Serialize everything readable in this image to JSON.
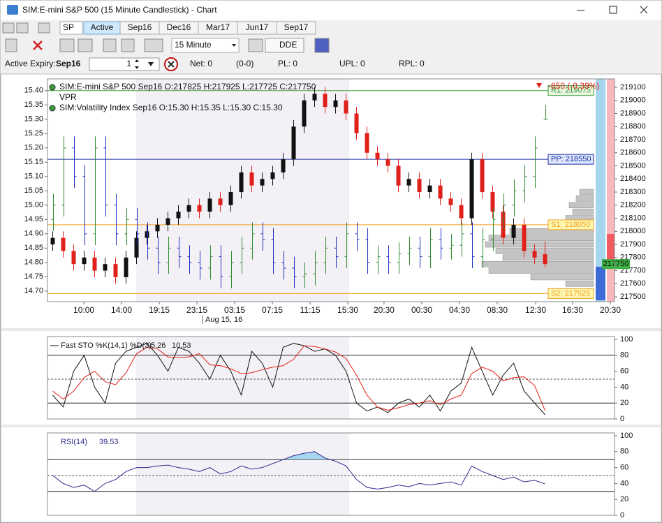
{
  "window": {
    "title": "SIM:E-mini S&P 500 (15 Minute Candlestick) - Chart"
  },
  "toolbar": {
    "symbol": "SP",
    "tabs": [
      "Active",
      "Sep16",
      "Dec16",
      "Mar17",
      "Jun17",
      "Sep17"
    ],
    "interval": "15 Minute",
    "dde": "DDE"
  },
  "status": {
    "expiry_label": "Active Expiry:",
    "expiry": "Sep16",
    "quantity": 1,
    "net": "Net: 0",
    "record": "(0-0)",
    "pl": "PL: 0",
    "upl": "UPL: 0",
    "rpl": "RPL: 0"
  },
  "chart_data": [
    {
      "type": "candlestick",
      "indicator": "VPR",
      "change_label": "-850 (-0.39%)",
      "x": [
        0.5,
        1.5,
        2.5,
        3.5,
        4.5,
        5.5,
        6.5,
        7.5,
        8.5,
        9.5,
        10.5,
        11.5,
        12.5,
        13.5,
        14.5,
        15.5,
        16.5,
        17.5,
        18.5,
        19.5,
        20.5,
        21.5,
        22.5,
        23.5,
        24.5,
        25.5,
        26.5,
        27.5,
        28.5,
        29.5,
        30.5,
        31.5,
        32.5,
        33.5,
        34.5,
        35.5,
        36.5,
        37.5,
        38.5,
        39.5,
        40.5,
        41.5,
        42.5,
        43.5,
        44.5,
        45.5,
        46.5,
        47.5
      ],
      "xlim": [
        0,
        54.13
      ],
      "xticks": [
        {
          "value": 3.47,
          "label": "10:00"
        },
        {
          "value": 7.07,
          "label": "14:00"
        },
        {
          "value": 10.67,
          "label": "19:15"
        },
        {
          "value": 14.27,
          "label": "23:15"
        },
        {
          "value": 17.87,
          "label": "03:15"
        },
        {
          "value": 21.47,
          "label": "07:15"
        },
        {
          "value": 25.07,
          "label": "11:15"
        },
        {
          "value": 28.67,
          "label": "15:30"
        },
        {
          "value": 32.13,
          "label": "20:30"
        },
        {
          "value": 35.73,
          "label": "00:30"
        },
        {
          "value": 39.33,
          "label": "04:30"
        },
        {
          "value": 42.93,
          "label": "08:30"
        },
        {
          "value": 46.6,
          "label": "12:30"
        },
        {
          "value": 50.13,
          "label": "16:30"
        },
        {
          "value": 53.73,
          "label": "20:30"
        }
      ],
      "date_marker": {
        "value": 14.8,
        "label": "Aug 15, 16"
      },
      "ylim": [
        14.663,
        15.441
      ],
      "yticks": [
        {
          "value": 15.4,
          "label": "15.40"
        },
        15.35,
        {
          "value": 15.3,
          "label": "15.30"
        },
        15.25,
        {
          "value": 15.2,
          "label": "15.20"
        },
        15.15,
        {
          "value": 15.1,
          "label": "15.10"
        },
        15.05,
        {
          "value": 15,
          "label": "15.00"
        },
        14.95,
        {
          "value": 14.9,
          "label": "14.90"
        },
        14.85,
        {
          "value": 14.8,
          "label": "14.80"
        },
        14.75,
        {
          "value": 14.7,
          "label": "14.70"
        }
      ],
      "y2lim": [
        217463,
        219164
      ],
      "y2ticks": [
        219100,
        219000,
        218900,
        218800,
        218700,
        218600,
        218500,
        218400,
        218300,
        218200,
        218100,
        218000,
        217900,
        217800,
        217700,
        217600,
        217500
      ],
      "series": [
        {
          "name": "SIM:E-mini S&P 500 Sep16 O:217825 H:217925 L:217725 C:217750",
          "axis": "y2",
          "up_color": "#111111",
          "down_color": "#e0201b",
          "open": [
            217900,
            217950,
            217850,
            217750,
            217800,
            217700,
            217750,
            217650,
            217800,
            217950,
            218000,
            218050,
            218100,
            218150,
            218200,
            218150,
            218250,
            218200,
            218300,
            218450,
            218350,
            218400,
            218450,
            218550,
            218800,
            219000,
            219050,
            218950,
            219000,
            218900,
            218750,
            218600,
            218550,
            218500,
            218350,
            218400,
            218300,
            218350,
            218250,
            218200,
            218100,
            218550,
            218300,
            218150,
            217950,
            218050,
            217850,
            217825
          ],
          "high": [
            218000,
            218000,
            217900,
            217850,
            217850,
            217800,
            217800,
            217850,
            218000,
            218050,
            218100,
            218150,
            218200,
            218250,
            218250,
            218300,
            218300,
            218350,
            218500,
            218500,
            218450,
            218500,
            218600,
            218850,
            219050,
            219100,
            219100,
            219050,
            219050,
            218950,
            218800,
            218650,
            218600,
            218550,
            218450,
            218450,
            218400,
            218400,
            218300,
            218250,
            218600,
            218600,
            218350,
            218200,
            218100,
            218100,
            217900,
            217925
          ],
          "low": [
            217850,
            217800,
            217700,
            217700,
            217650,
            217650,
            217600,
            217600,
            217750,
            217900,
            217950,
            218000,
            218050,
            218100,
            218100,
            218100,
            218150,
            218150,
            218250,
            218300,
            218300,
            218350,
            218400,
            218500,
            218750,
            218950,
            218900,
            218900,
            218850,
            218700,
            218550,
            218500,
            218450,
            218300,
            218300,
            218250,
            218250,
            218200,
            218150,
            218050,
            218050,
            218250,
            218100,
            217900,
            217900,
            217800,
            217750,
            217725
          ],
          "close": [
            217950,
            217850,
            217750,
            217800,
            217700,
            217750,
            217650,
            217800,
            217950,
            218000,
            218050,
            218100,
            218150,
            218200,
            218150,
            218250,
            218200,
            218300,
            218450,
            218350,
            218400,
            218450,
            218550,
            218800,
            219000,
            219050,
            218950,
            219000,
            218900,
            218750,
            218600,
            218550,
            218500,
            218350,
            218400,
            218300,
            218350,
            218250,
            218200,
            218100,
            218550,
            218300,
            218150,
            217950,
            218050,
            217850,
            217800,
            217750
          ]
        },
        {
          "name": "SIM:Volatility Index Sep16 O:15.30 H:15.35 L:15.30 C:15.30",
          "axis": "y",
          "up_color": "#2e8b2e",
          "down_color": "#1f2fbf",
          "open": [
            14.95,
            15.0,
            15.2,
            15.1,
            14.9,
            15.2,
            15.0,
            14.9,
            14.95,
            14.9,
            14.85,
            14.8,
            14.85,
            14.82,
            14.8,
            14.78,
            14.82,
            14.75,
            14.8,
            14.85,
            14.9,
            14.88,
            14.8,
            14.78,
            14.75,
            14.76,
            14.8,
            14.85,
            14.82,
            14.9,
            14.88,
            14.8,
            14.82,
            14.8,
            14.83,
            14.85,
            14.82,
            14.88,
            14.85,
            14.86,
            14.9,
            14.82,
            14.88,
            14.95,
            15.0,
            15.05,
            15.1,
            15.3
          ],
          "high": [
            15.04,
            15.24,
            15.24,
            15.14,
            15.24,
            15.24,
            15.04,
            14.99,
            14.99,
            14.94,
            14.89,
            14.89,
            14.89,
            14.86,
            14.84,
            14.86,
            14.86,
            14.84,
            14.89,
            14.94,
            14.94,
            14.92,
            14.84,
            14.82,
            14.8,
            14.84,
            14.89,
            14.89,
            14.94,
            14.94,
            14.92,
            14.86,
            14.86,
            14.87,
            14.89,
            14.89,
            14.92,
            14.92,
            14.9,
            14.94,
            14.94,
            14.92,
            14.99,
            15.04,
            15.09,
            15.14,
            15.24,
            15.35
          ],
          "low": [
            14.91,
            14.96,
            15.06,
            14.86,
            14.86,
            14.96,
            14.86,
            14.86,
            14.86,
            14.81,
            14.76,
            14.76,
            14.78,
            14.76,
            14.74,
            14.74,
            14.71,
            14.71,
            14.76,
            14.81,
            14.84,
            14.76,
            14.74,
            14.71,
            14.71,
            14.72,
            14.76,
            14.78,
            14.78,
            14.84,
            14.76,
            14.76,
            14.76,
            14.76,
            14.79,
            14.78,
            14.78,
            14.81,
            14.81,
            14.82,
            14.78,
            14.78,
            14.84,
            14.91,
            14.96,
            15.01,
            15.06,
            15.3
          ],
          "close": [
            15.0,
            15.2,
            15.1,
            14.9,
            15.2,
            15.0,
            14.9,
            14.95,
            14.9,
            14.85,
            14.8,
            14.85,
            14.82,
            14.8,
            14.78,
            14.82,
            14.75,
            14.8,
            14.85,
            14.9,
            14.88,
            14.8,
            14.78,
            14.75,
            14.76,
            14.8,
            14.85,
            14.82,
            14.9,
            14.88,
            14.8,
            14.82,
            14.8,
            14.83,
            14.85,
            14.82,
            14.88,
            14.85,
            14.86,
            14.9,
            14.82,
            14.88,
            14.95,
            15.0,
            15.05,
            15.1,
            15.2,
            15.3
          ]
        }
      ],
      "levels": [
        {
          "value": 219075,
          "label": "R1: 219075",
          "color": "#3a9a3a",
          "fill": "#e8f6e0"
        },
        {
          "value": 218550,
          "label": "PP: 218550",
          "color": "#2030a0",
          "fill": "#dde6ff"
        },
        {
          "value": 218050,
          "label": "S1: 218050",
          "color": "#f0a020",
          "fill": "#fff6b0"
        },
        {
          "value": 217525,
          "label": "S2: 217525",
          "color": "#f0a020",
          "fill": "#fff6b0"
        }
      ],
      "last": 217750,
      "last_color": "#3cb043",
      "vpr": {
        "levels": [
          217600,
          217650,
          217700,
          217750,
          217800,
          217850,
          217900,
          217950,
          218000,
          218050,
          218100,
          218150,
          218200,
          218250,
          218300
        ],
        "volumes": [
          40,
          90,
          150,
          160,
          130,
          140,
          155,
          150,
          120,
          60,
          40,
          30,
          35,
          25,
          20
        ],
        "color": "#c4c4c4"
      }
    },
    {
      "type": "line",
      "title": "Fast STO %K(14,1) %D(3)",
      "ylim": [
        0,
        100
      ],
      "yticks": [
        0,
        20,
        40,
        60,
        80,
        100
      ],
      "reference_lines": [
        {
          "value": 80,
          "style": "solid"
        },
        {
          "value": 50,
          "style": "dashed"
        },
        {
          "value": 20,
          "style": "solid"
        }
      ],
      "series": [
        {
          "color": "#111111",
          "values": [
            30,
            15,
            60,
            80,
            40,
            20,
            70,
            85,
            90,
            95,
            80,
            60,
            90,
            85,
            70,
            50,
            80,
            60,
            30,
            85,
            70,
            40,
            90,
            95,
            92,
            85,
            88,
            80,
            60,
            20,
            10,
            15,
            8,
            20,
            25,
            15,
            30,
            10,
            35,
            45,
            90,
            60,
            30,
            55,
            70,
            35,
            20,
            5.26
          ]
        },
        {
          "color": "#e0201b",
          "values": [
            35,
            25,
            35,
            52,
            60,
            47,
            43,
            58,
            82,
            90,
            88,
            78,
            77,
            78,
            82,
            68,
            67,
            63,
            57,
            58,
            62,
            65,
            67,
            75,
            92,
            91,
            88,
            84,
            76,
            55,
            30,
            15,
            11,
            14,
            18,
            20,
            23,
            18,
            25,
            30,
            57,
            65,
            60,
            48,
            52,
            53,
            42,
            10.53
          ]
        }
      ]
    },
    {
      "type": "line",
      "title": "RSI(14)",
      "ylim": [
        0,
        100
      ],
      "yticks": [
        0,
        20,
        40,
        60,
        80,
        100
      ],
      "reference_lines": [
        {
          "value": 70,
          "style": "solid"
        },
        {
          "value": 50,
          "style": "dashed"
        },
        {
          "value": 30,
          "style": "solid"
        }
      ],
      "overbought_fill": "#a8d4ee",
      "series": [
        {
          "color": "#2b2b8f",
          "values": [
            50,
            40,
            35,
            38,
            30,
            40,
            45,
            55,
            60,
            60,
            62,
            63,
            60,
            58,
            55,
            60,
            52,
            55,
            62,
            58,
            60,
            65,
            70,
            75,
            78,
            80,
            72,
            68,
            62,
            45,
            35,
            33,
            35,
            38,
            36,
            40,
            38,
            40,
            42,
            38,
            62,
            55,
            50,
            45,
            48,
            42,
            44,
            39.53
          ]
        }
      ]
    }
  ]
}
